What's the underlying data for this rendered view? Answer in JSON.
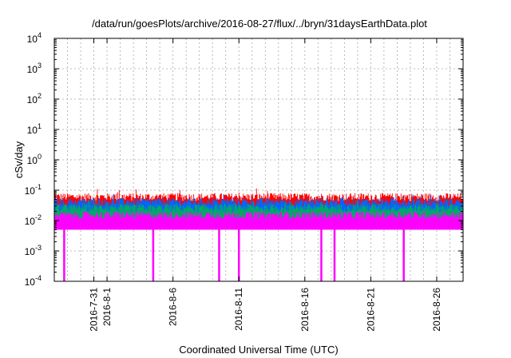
{
  "chart_data": {
    "type": "line",
    "title": "/data/run/goesPlots/archive/2016-08-27/flux/../bryn/31daysEarthData.plot",
    "xlabel": "Coordinated Universal Time (UTC)",
    "ylabel": "cSv/day",
    "y_scale": "log",
    "ylim": [
      0.0001,
      10000
    ],
    "y_ticks": [
      {
        "base": "10",
        "exp": "-4",
        "value": 0.0001
      },
      {
        "base": "10",
        "exp": "-3",
        "value": 0.001
      },
      {
        "base": "10",
        "exp": "-2",
        "value": 0.01
      },
      {
        "base": "10",
        "exp": "-1",
        "value": 0.1
      },
      {
        "base": "10",
        "exp": "0",
        "value": 1
      },
      {
        "base": "10",
        "exp": "1",
        "value": 10
      },
      {
        "base": "10",
        "exp": "2",
        "value": 100
      },
      {
        "base": "10",
        "exp": "3",
        "value": 1000
      },
      {
        "base": "10",
        "exp": "4",
        "value": 10000
      }
    ],
    "xlim": [
      "2016-07-28",
      "2016-08-28"
    ],
    "x_ticks": [
      "2016-7-31",
      "2016-8-1",
      "2016-8-6",
      "2016-8-11",
      "2016-8-16",
      "2016-8-21",
      "2016-8-26"
    ],
    "grid": true,
    "series": [
      {
        "color": "#ff0000",
        "typical": 0.08,
        "peak": 0.12
      },
      {
        "color": "#0066ff",
        "typical": 0.055,
        "peak": 0.08
      },
      {
        "color": "#00aa66",
        "typical": 0.035,
        "peak": 0.05
      },
      {
        "color": "#ff00ff",
        "typical": 0.02,
        "floor": 0.005,
        "dropout_to": 0.0001,
        "dropouts": [
          "2016-07-28T18:00",
          "2016-08-04T12:00",
          "2016-08-09T12:00",
          "2016-08-11T00:00",
          "2016-08-17T06:00",
          "2016-08-18T06:00",
          "2016-08-23T12:00"
        ]
      }
    ]
  }
}
